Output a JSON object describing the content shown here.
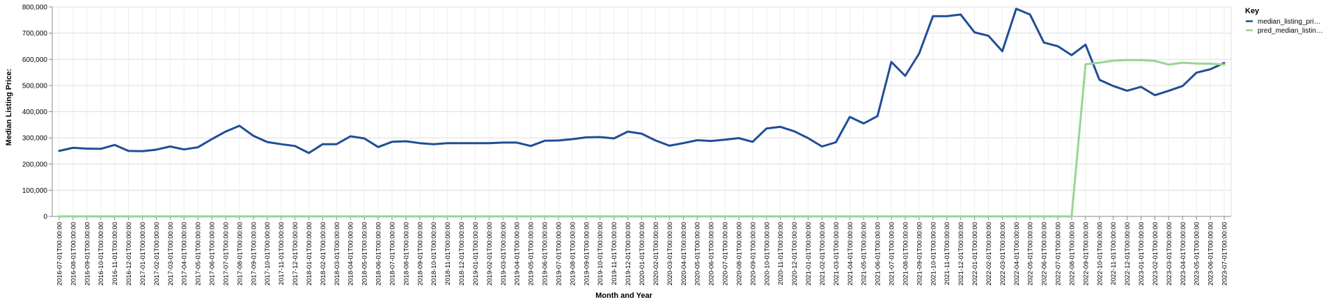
{
  "chart_data": {
    "type": "line",
    "xlabel": "Month and Year",
    "ylabel": "Median Listing Price:",
    "ylim": [
      0,
      800000
    ],
    "yticks": [
      0,
      100000,
      200000,
      300000,
      400000,
      500000,
      600000,
      700000,
      800000
    ],
    "ytick_labels": [
      "0",
      "100,000",
      "200,000",
      "300,000",
      "400,000",
      "500,000",
      "600,000",
      "700,000",
      "800,000"
    ],
    "grid": true,
    "legend_position": "top-right",
    "legend_title": "Key",
    "x": [
      "2016-07-01T00:00:00",
      "2016-08-01T00:00:00",
      "2016-09-01T00:00:00",
      "2016-10-01T00:00:00",
      "2016-11-01T00:00:00",
      "2016-12-01T00:00:00",
      "2017-01-01T00:00:00",
      "2017-02-01T00:00:00",
      "2017-03-01T00:00:00",
      "2017-04-01T00:00:00",
      "2017-05-01T00:00:00",
      "2017-06-01T00:00:00",
      "2017-07-01T00:00:00",
      "2017-08-01T00:00:00",
      "2017-09-01T00:00:00",
      "2017-10-01T00:00:00",
      "2017-11-01T00:00:00",
      "2017-12-01T00:00:00",
      "2018-01-01T00:00:00",
      "2018-02-01T00:00:00",
      "2018-03-01T00:00:00",
      "2018-04-01T00:00:00",
      "2018-05-01T00:00:00",
      "2018-06-01T00:00:00",
      "2018-07-01T00:00:00",
      "2018-08-01T00:00:00",
      "2018-09-01T00:00:00",
      "2018-10-01T00:00:00",
      "2018-11-01T00:00:00",
      "2018-12-01T00:00:00",
      "2019-01-01T00:00:00",
      "2019-02-01T00:00:00",
      "2019-03-01T00:00:00",
      "2019-04-01T00:00:00",
      "2019-05-01T00:00:00",
      "2019-06-01T00:00:00",
      "2019-07-01T00:00:00",
      "2019-08-01T00:00:00",
      "2019-09-01T00:00:00",
      "2019-10-01T00:00:00",
      "2019-11-01T00:00:00",
      "2019-12-01T00:00:00",
      "2020-01-01T00:00:00",
      "2020-02-01T00:00:00",
      "2020-03-01T00:00:00",
      "2020-04-01T00:00:00",
      "2020-05-01T00:00:00",
      "2020-06-01T00:00:00",
      "2020-07-01T00:00:00",
      "2020-08-01T00:00:00",
      "2020-09-01T00:00:00",
      "2020-10-01T00:00:00",
      "2020-11-01T00:00:00",
      "2020-12-01T00:00:00",
      "2021-01-01T00:00:00",
      "2021-02-01T00:00:00",
      "2021-03-01T00:00:00",
      "2021-04-01T00:00:00",
      "2021-05-01T00:00:00",
      "2021-06-01T00:00:00",
      "2021-07-01T00:00:00",
      "2021-08-01T00:00:00",
      "2021-09-01T00:00:00",
      "2021-10-01T00:00:00",
      "2021-11-01T00:00:00",
      "2021-12-01T00:00:00",
      "2022-01-01T00:00:00",
      "2022-02-01T00:00:00",
      "2022-03-01T00:00:00",
      "2022-04-01T00:00:00",
      "2022-05-01T00:00:00",
      "2022-06-01T00:00:00",
      "2022-07-01T00:00:00",
      "2022-08-01T00:00:00",
      "2022-09-01T00:00:00",
      "2022-10-01T00:00:00",
      "2022-11-01T00:00:00",
      "2022-12-01T00:00:00",
      "2023-01-01T00:00:00",
      "2023-02-01T00:00:00",
      "2023-03-01T00:00:00",
      "2023-04-01T00:00:00",
      "2023-05-01T00:00:00",
      "2023-06-01T00:00:00",
      "2023-07-01T00:00:00"
    ],
    "series": [
      {
        "name": "median_listing_pri…",
        "color": "#1f4e96",
        "values": [
          250000,
          262000,
          259000,
          258000,
          273000,
          250000,
          249000,
          255000,
          267000,
          256000,
          264000,
          295000,
          324000,
          346000,
          308000,
          284000,
          276000,
          269000,
          242000,
          276000,
          276000,
          306000,
          298000,
          265000,
          285000,
          287000,
          280000,
          276000,
          280000,
          280000,
          280000,
          280000,
          282000,
          282000,
          269000,
          289000,
          290000,
          295000,
          302000,
          303000,
          298000,
          324000,
          316000,
          290000,
          270000,
          280000,
          291000,
          288000,
          293000,
          299000,
          285000,
          336000,
          342000,
          325000,
          299000,
          267000,
          283000,
          380000,
          355000,
          383000,
          590000,
          537000,
          622000,
          765000,
          765000,
          771000,
          703000,
          690000,
          631000,
          793000,
          771000,
          664000,
          650000,
          616000,
          656000,
          522000,
          498000,
          480000,
          495000,
          463000,
          480000,
          498000,
          549000,
          562000,
          586000
        ]
      },
      {
        "name": "pred_median_listin…",
        "color": "#98d594",
        "values": [
          0,
          0,
          0,
          0,
          0,
          0,
          0,
          0,
          0,
          0,
          0,
          0,
          0,
          0,
          0,
          0,
          0,
          0,
          0,
          0,
          0,
          0,
          0,
          0,
          0,
          0,
          0,
          0,
          0,
          0,
          0,
          0,
          0,
          0,
          0,
          0,
          0,
          0,
          0,
          0,
          0,
          0,
          0,
          0,
          0,
          0,
          0,
          0,
          0,
          0,
          0,
          0,
          0,
          0,
          0,
          0,
          0,
          0,
          0,
          0,
          0,
          0,
          0,
          0,
          0,
          0,
          0,
          0,
          0,
          0,
          0,
          0,
          0,
          0,
          581000,
          587000,
          595000,
          597000,
          597000,
          594000,
          580000,
          587000,
          584000,
          583000,
          580000
        ]
      }
    ]
  }
}
